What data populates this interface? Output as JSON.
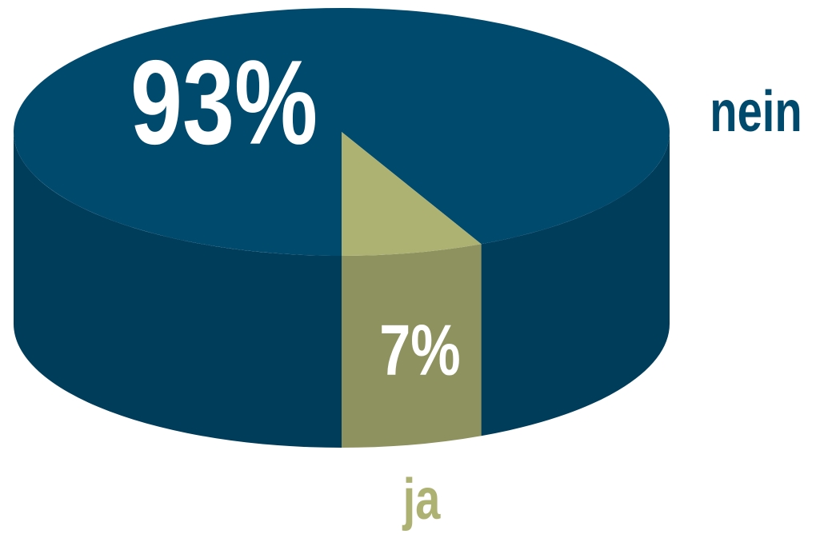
{
  "chart_data": {
    "type": "pie3d",
    "categories": [
      "nein",
      "ja"
    ],
    "values": [
      93,
      7
    ],
    "value_labels": [
      "93%",
      "7%"
    ],
    "colors": [
      "#004a6e",
      "#adb273"
    ]
  }
}
